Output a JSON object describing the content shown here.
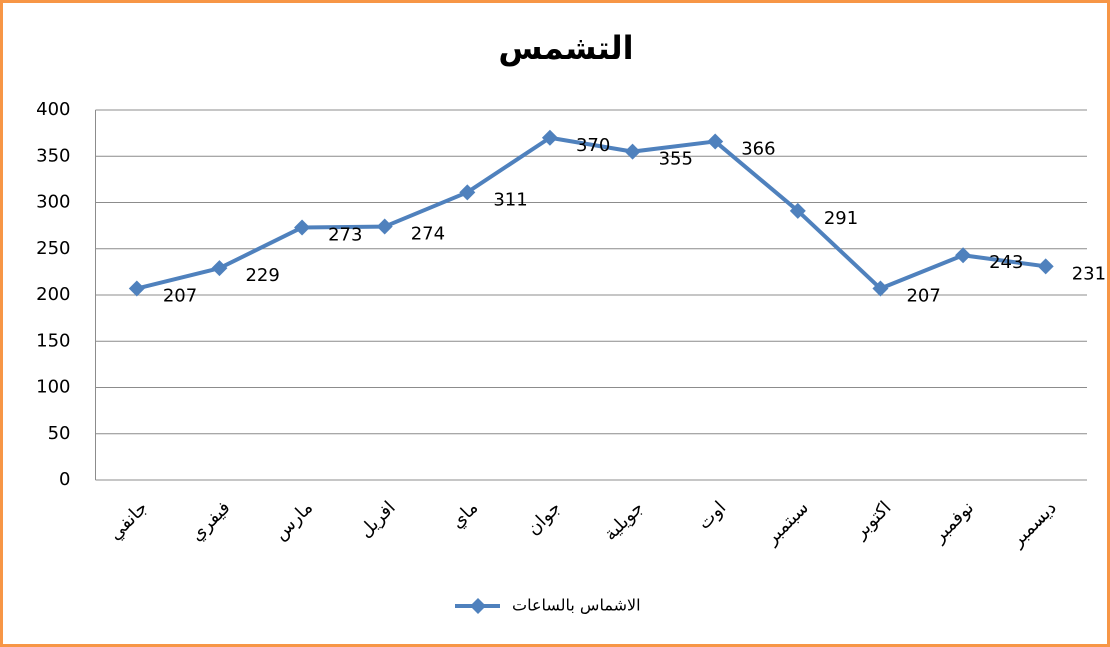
{
  "chart_data": {
    "type": "line",
    "title": "التشمس",
    "categories": [
      "جانفي",
      "فيفري",
      "مارس",
      "افريل",
      "ماي",
      "جوان",
      "جويلية",
      "اوت",
      "سبتمبر",
      "اكتوبر",
      "نوفمبر",
      "ديسمبر"
    ],
    "series": [
      {
        "name": "الاشماس بالساعات",
        "color": "#4f81bd",
        "values": [
          207,
          229,
          273,
          274,
          311,
          370,
          355,
          366,
          291,
          207,
          243,
          231
        ]
      }
    ],
    "ylim": [
      0,
      400
    ],
    "yticks": [
      0,
      50,
      100,
      150,
      200,
      250,
      300,
      350,
      400
    ],
    "grid": true,
    "legend": "bottom"
  }
}
